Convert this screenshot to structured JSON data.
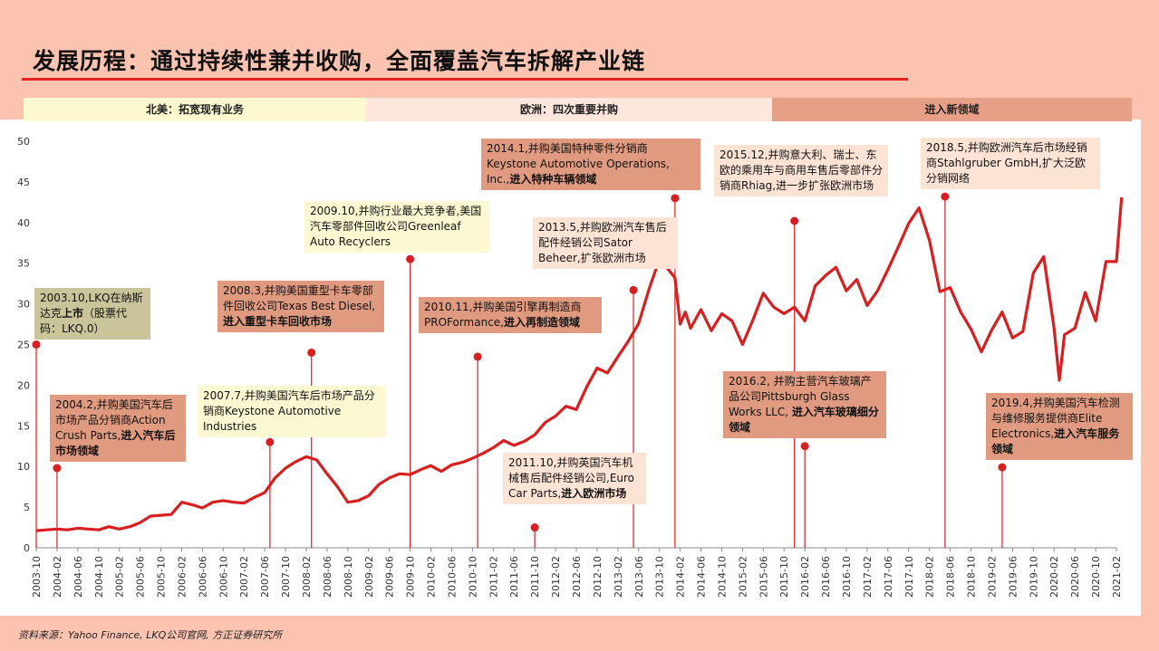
{
  "page_title": "发展历程：通过持续性兼并收购，全面覆盖汽车拆解产业链",
  "phases": [
    {
      "label": "北美：拓宽现有业务"
    },
    {
      "label": "欧洲：四次重要并购"
    },
    {
      "label": "进入新领域"
    }
  ],
  "source": "资料来源：Yahoo Finance, LKQ公司官网, 方正证券研究所",
  "colors": {
    "line": "#d81e1e",
    "marker": "#d81e1e",
    "title_rule": "#e0241b",
    "background": "#fbc3b0"
  },
  "annotations": [
    {
      "text": "2003.10,LKQ在纳斯达克",
      "highlight": "上市",
      "tail": "（股票代码：LKQ.0）",
      "x": "2003-10",
      "y": 25
    },
    {
      "text": "2004.2,并购美国汽车后市场产品分销商Action Crush Parts,",
      "highlight": "进入汽车后市场领域",
      "tail": "",
      "x": "2004-02",
      "y": 9.8
    },
    {
      "text": "2007.7,并购美国汽车后市场产品分销商Keystone Automotive Industries",
      "highlight": "",
      "tail": "",
      "x": "2007-07",
      "y": 13
    },
    {
      "text": "2008.3,并购美国重型卡车零部件回收公司Texas Best Diesel,",
      "highlight": "进入重型卡车回收市场",
      "tail": "",
      "x": "2008-03",
      "y": 24
    },
    {
      "text": "2009.10,并购行业最大竞争者,美国汽车零部件回收公司Greenleaf Auto Recyclers",
      "highlight": "",
      "tail": "",
      "x": "2009-10",
      "y": 35.5
    },
    {
      "text": "2010.11,并购美国引擎再制造商PROFormance,",
      "highlight": "进入再制造领域",
      "tail": "",
      "x": "2010-11",
      "y": 23.5
    },
    {
      "text": "2011.10,并购英国汽车机械售后配件经销公司,Euro Car Parts,",
      "highlight": "进入欧洲市场",
      "tail": "",
      "x": "2011-10",
      "y": 2.5
    },
    {
      "text": "2013.5,并购欧洲汽车售后配件经销公司Sator Beheer,扩张欧洲市场",
      "highlight": "",
      "tail": "",
      "x": "2013-05",
      "y": 31.7
    },
    {
      "text": "2014.1,并购美国特种零件分销商Keystone Automotive Operations, Inc.,",
      "highlight": "进入特种车辆领域",
      "tail": "",
      "x": "2014-01",
      "y": 43
    },
    {
      "text": "2015.12,并购意大利、瑞士、东欧的乘用车与商用车售后零部件分销商Rhiag,进一步扩张欧洲市场",
      "highlight": "",
      "tail": "",
      "x": "2015-12",
      "y": 40.2
    },
    {
      "text": "2016.2, 并购主营汽车玻璃产品公司Pittsburgh Glass Works LLC, ",
      "highlight": "进入汽车玻璃细分领域",
      "tail": "",
      "x": "2016-02",
      "y": 12.5
    },
    {
      "text": "2018.5,并购欧洲汽车后市场经销商Stahlgruber GmbH,扩大泛欧分销网络",
      "highlight": "",
      "tail": "",
      "x": "2018-05",
      "y": 43.2
    },
    {
      "text": "2019.4,并购美国汽车检测与维修服务提供商Elite Electronics,",
      "highlight": "进入汽车服务领域",
      "tail": "",
      "x": "2019-04",
      "y": 9.9
    }
  ],
  "chart_data": {
    "type": "line",
    "ylim": [
      0,
      50
    ],
    "yticks": [
      0,
      5,
      10,
      15,
      20,
      25,
      30,
      35,
      40,
      45,
      50
    ],
    "xticks": [
      "2003-10",
      "2004-02",
      "2004-06",
      "2004-10",
      "2005-02",
      "2005-06",
      "2005-10",
      "2006-02",
      "2006-06",
      "2006-10",
      "2007-02",
      "2007-06",
      "2007-10",
      "2008-02",
      "2008-06",
      "2008-10",
      "2009-02",
      "2009-06",
      "2009-10",
      "2010-02",
      "2010-06",
      "2010-10",
      "2011-02",
      "2011-06",
      "2011-10",
      "2012-02",
      "2012-06",
      "2012-10",
      "2013-02",
      "2013-06",
      "2013-10",
      "2014-02",
      "2014-06",
      "2014-10",
      "2015-02",
      "2015-06",
      "2015-10",
      "2016-02",
      "2016-06",
      "2016-10",
      "2017-02",
      "2017-06",
      "2017-10",
      "2018-02",
      "2018-06",
      "2018-10",
      "2019-02",
      "2019-06",
      "2019-10",
      "2020-02",
      "2020-06",
      "2020-10",
      "2021-02"
    ],
    "series": [
      {
        "x": [
          "2003-10",
          "2003-12",
          "2004-02",
          "2004-04",
          "2004-06",
          "2004-08",
          "2004-10",
          "2004-12",
          "2005-02",
          "2005-04",
          "2005-06",
          "2005-08",
          "2005-10",
          "2005-12",
          "2006-02",
          "2006-04",
          "2006-06",
          "2006-08",
          "2006-10",
          "2006-12",
          "2007-02",
          "2007-04",
          "2007-06",
          "2007-08",
          "2007-10",
          "2007-12",
          "2008-02",
          "2008-04",
          "2008-06",
          "2008-08",
          "2008-10",
          "2008-12",
          "2009-02",
          "2009-04",
          "2009-06",
          "2009-08",
          "2009-10",
          "2009-12",
          "2010-02",
          "2010-04",
          "2010-06",
          "2010-08",
          "2010-10",
          "2010-12",
          "2011-02",
          "2011-04",
          "2011-06",
          "2011-08",
          "2011-10",
          "2011-12",
          "2012-02",
          "2012-04",
          "2012-06",
          "2012-08",
          "2012-10",
          "2012-12",
          "2013-02",
          "2013-04",
          "2013-06",
          "2013-08",
          "2013-10",
          "2013-12",
          "2014-01",
          "2014-02",
          "2014-03",
          "2014-04",
          "2014-06",
          "2014-08",
          "2014-10",
          "2014-12",
          "2015-02",
          "2015-04",
          "2015-06",
          "2015-08",
          "2015-10",
          "2015-12",
          "2016-02",
          "2016-04",
          "2016-06",
          "2016-08",
          "2016-10",
          "2016-12",
          "2017-02",
          "2017-04",
          "2017-06",
          "2017-08",
          "2017-10",
          "2017-12",
          "2018-02",
          "2018-04",
          "2018-06",
          "2018-08",
          "2018-10",
          "2018-12",
          "2019-02",
          "2019-04",
          "2019-06",
          "2019-08",
          "2019-10",
          "2019-12",
          "2020-02",
          "2020-03",
          "2020-04",
          "2020-06",
          "2020-08",
          "2020-10",
          "2020-12",
          "2021-02",
          "2021-03"
        ],
        "y": [
          2.1,
          2.2,
          2.3,
          2.2,
          2.4,
          2.3,
          2.2,
          2.6,
          2.3,
          2.6,
          3.1,
          3.9,
          4.0,
          4.1,
          5.6,
          5.3,
          4.9,
          5.6,
          5.8,
          5.6,
          5.5,
          6.2,
          6.8,
          8.6,
          9.8,
          10.6,
          11.2,
          10.8,
          9.1,
          7.5,
          5.6,
          5.8,
          6.4,
          7.8,
          8.6,
          9.1,
          9.0,
          9.6,
          10.1,
          9.4,
          10.2,
          10.5,
          11.0,
          11.6,
          12.3,
          13.2,
          12.6,
          13.1,
          13.9,
          15.4,
          16.2,
          17.4,
          17.0,
          19.8,
          22.1,
          21.5,
          23.5,
          25.4,
          27.6,
          31.8,
          35.5,
          34.0,
          33.2,
          27.5,
          29.0,
          27.0,
          29.3,
          26.7,
          28.8,
          27.9,
          25.0,
          28.0,
          31.3,
          29.6,
          28.8,
          29.6,
          27.9,
          32.2,
          33.5,
          34.5,
          31.6,
          33.0,
          29.8,
          31.6,
          34.2,
          37.0,
          39.9,
          41.8,
          37.8,
          31.5,
          32.0,
          29.0,
          26.9,
          24.1,
          26.8,
          29.0,
          25.8,
          26.6,
          33.8,
          35.8,
          27.0,
          20.6,
          26.2,
          27.0,
          31.4,
          27.9,
          35.2,
          35.2,
          43.1
        ]
      }
    ]
  }
}
